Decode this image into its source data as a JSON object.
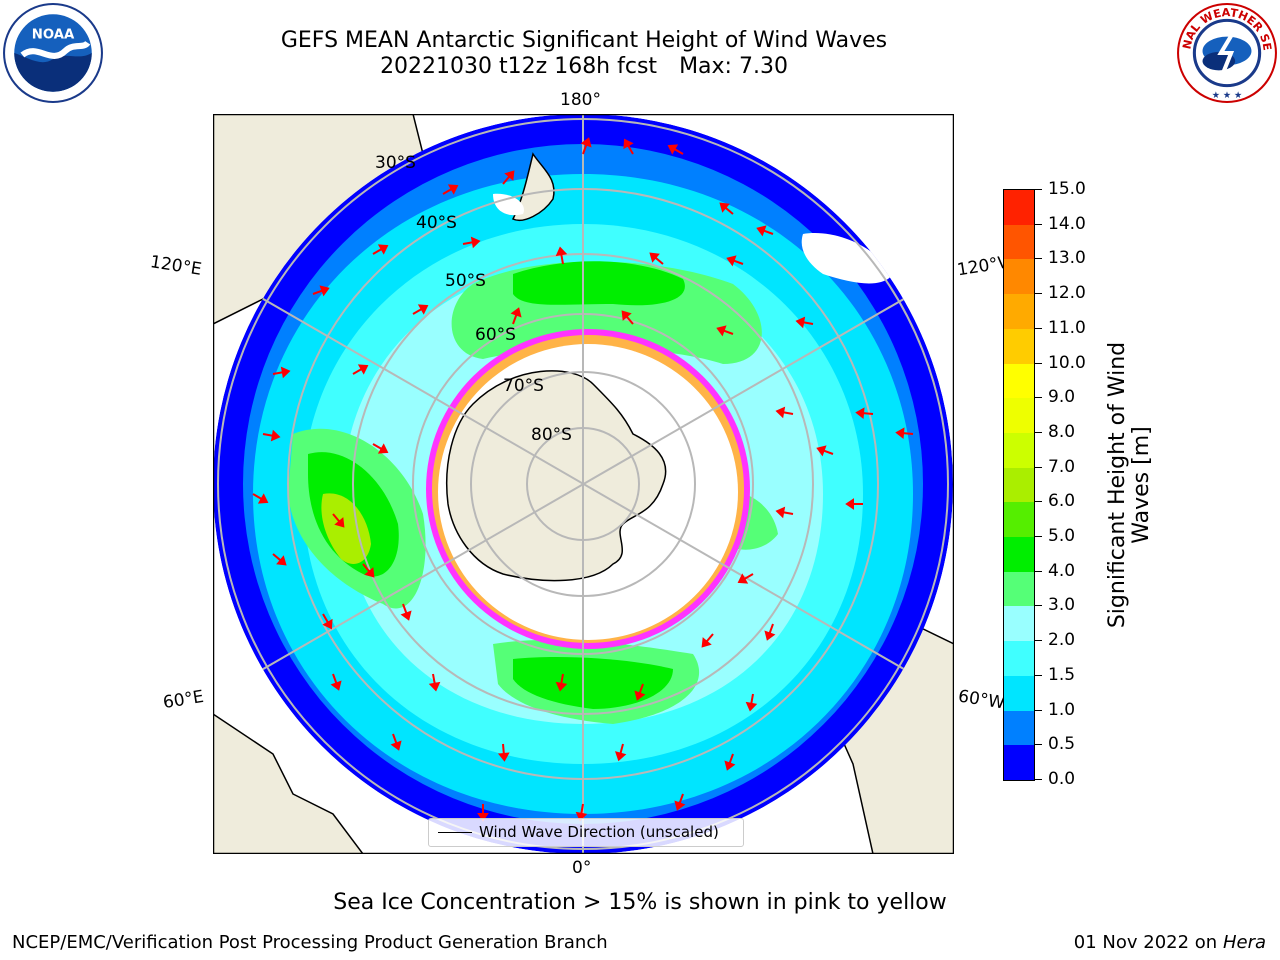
{
  "title": {
    "line1": "GEFS MEAN Antarctic Significant Height of Wind Waves",
    "line2_run": "20221030 t12z 168h fcst",
    "line2_max": "Max: 7.30"
  },
  "logos": {
    "left": "NOAA",
    "right": "NATIONAL WEATHER SERVICE"
  },
  "map": {
    "longitude_labels": [
      "180°",
      "120°E",
      "120°W",
      "60°E",
      "60°W",
      "0°"
    ],
    "latitude_labels": [
      "30°S",
      "40°S",
      "50°S",
      "60°S",
      "70°S",
      "80°S"
    ],
    "legend_label": "Wind Wave Direction (unscaled)",
    "colors": {
      "land": "#efecdc",
      "sea_ice": "#ffffff",
      "ice_edge": "#ff33ff",
      "ice_edge_inner": "#ffb347",
      "arrows": "#ff0000",
      "grid": "#b8b8b8"
    }
  },
  "colorbar": {
    "label": "Significant Height of Wind Waves [m]",
    "ticks": [
      "0.0",
      "0.5",
      "1.0",
      "1.5",
      "2.0",
      "3.0",
      "4.0",
      "5.0",
      "6.0",
      "7.0",
      "8.0",
      "9.0",
      "10.0",
      "11.0",
      "12.0",
      "13.0",
      "14.0",
      "15.0"
    ],
    "colors": [
      "#0000ff",
      "#0080ff",
      "#00e5ff",
      "#40ffff",
      "#99ffff",
      "#55ff77",
      "#00ee00",
      "#55ee00",
      "#aaee00",
      "#ccff00",
      "#eeff00",
      "#ffff00",
      "#ffcc00",
      "#ffaa00",
      "#ff8800",
      "#ff5500",
      "#ff2200"
    ]
  },
  "footer": {
    "ice_note": "Sea Ice Concentration > 15% is shown in pink to yellow",
    "credit": "NCEP/EMC/Verification Post Processing Product Generation Branch",
    "date": "01 Nov 2022 on",
    "machine": "Hera"
  }
}
